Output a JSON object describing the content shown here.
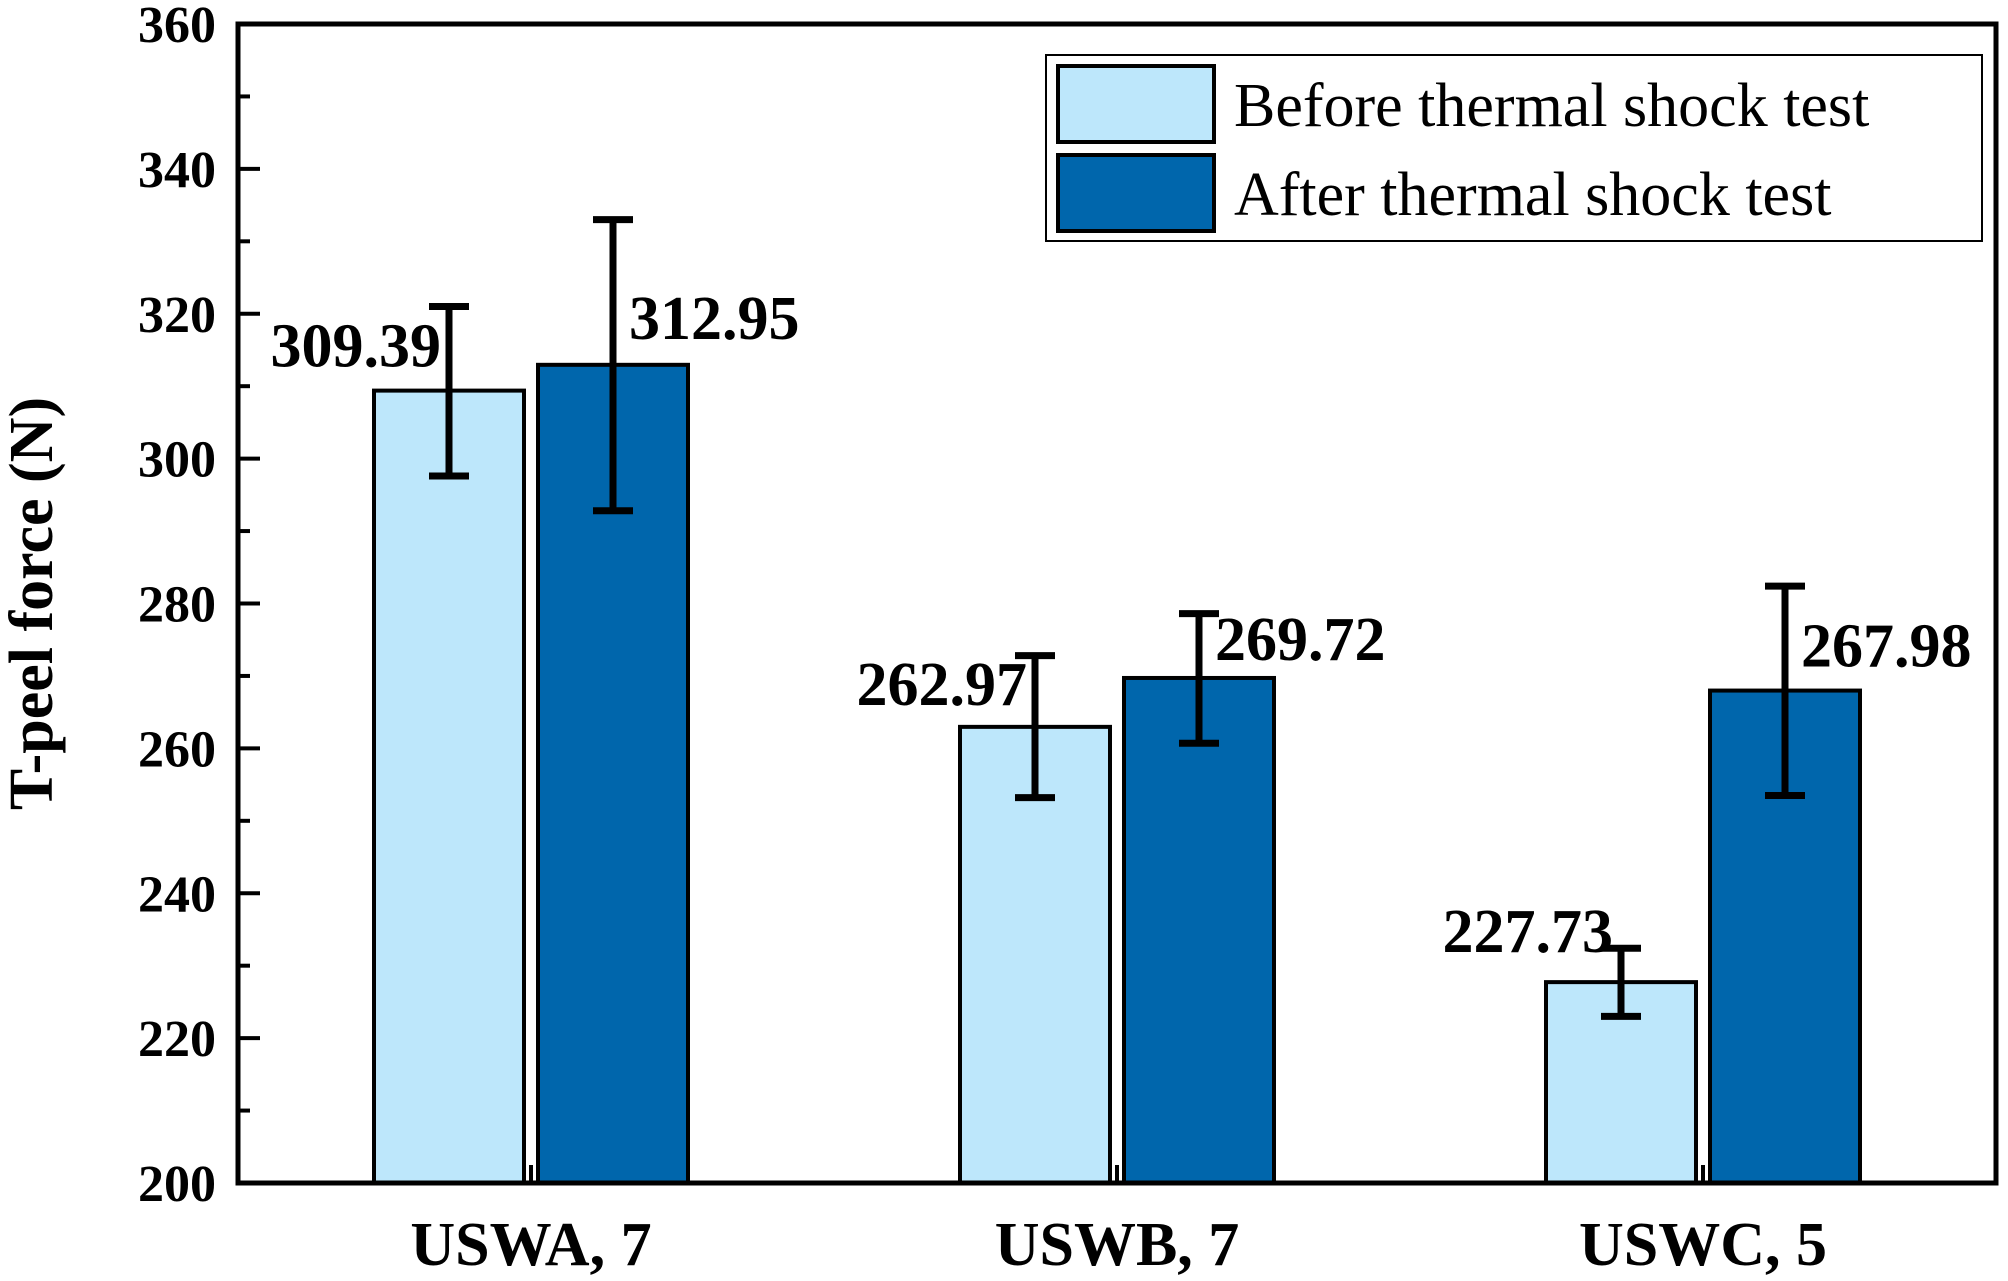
{
  "chart_data": {
    "type": "bar",
    "ylabel": "T-peel force (N)",
    "xlabel": "",
    "ylim": [
      200,
      360
    ],
    "yticks": [
      200,
      220,
      240,
      260,
      280,
      300,
      320,
      340,
      360
    ],
    "categories": [
      "USWA, 7",
      "USWB, 7",
      "USWC, 5"
    ],
    "series": [
      {
        "name": "Before thermal shock test",
        "color": "#bde7fb",
        "values": [
          309.39,
          262.97,
          227.73
        ],
        "labels": [
          "309.39",
          "262.97",
          "227.73"
        ],
        "err_low": [
          297.6,
          253.2,
          223.0
        ],
        "err_high": [
          321.0,
          272.8,
          232.4
        ]
      },
      {
        "name": "After thermal shock test",
        "color": "#0066ac",
        "values": [
          312.95,
          269.72,
          267.98
        ],
        "labels": [
          "312.95",
          "269.72",
          "267.98"
        ],
        "err_low": [
          292.8,
          260.7,
          253.5
        ],
        "err_high": [
          333.0,
          278.6,
          282.4
        ]
      }
    ],
    "grid": false,
    "legend_position": "top-right"
  }
}
